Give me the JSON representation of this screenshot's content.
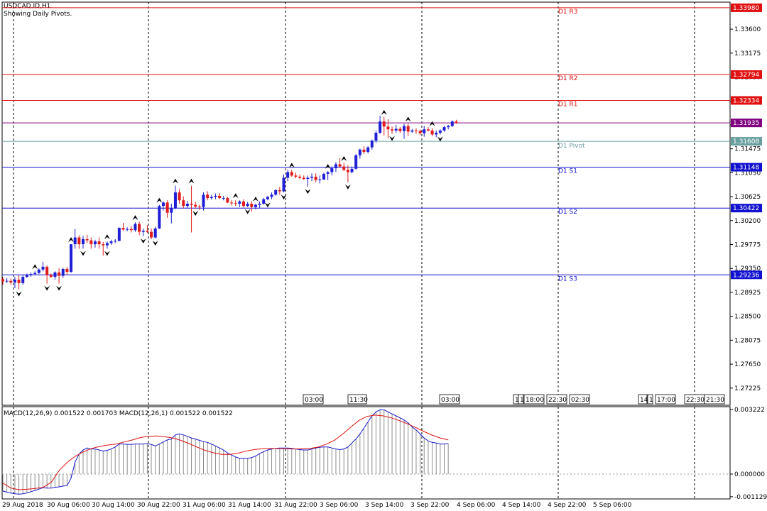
{
  "header": {
    "symbol": "USDCAD.ID,H1",
    "indicator_note": "Showing Daily Pivots."
  },
  "macd_header": "MACD(12,26,9) 0.001522 0.001703 MACD(12,26,1) 0.001522 0.001522",
  "colors": {
    "up_candle": "#1f1fd6",
    "down_candle": "#e01c1c",
    "macd_line": "#1a1acc",
    "signal_line": "#dd1111",
    "resistance": "#e01010",
    "support": "#1010d0",
    "pivot": "#6a9fa0",
    "grid_separator": "#000000",
    "current_price_bg": "#800080"
  },
  "chart_data": [
    {
      "type": "candlestick",
      "ylim": [
        1.2692,
        1.3408
      ],
      "y_ticks": [
        "1.33600",
        "1.33175",
        "1.32750",
        "1.32320",
        "1.31900",
        "1.31475",
        "1.31050",
        "1.30625",
        "1.30200",
        "1.29775",
        "1.29350",
        "1.28925",
        "1.28500",
        "1.28075",
        "1.27650",
        "1.27225"
      ],
      "x_labels": [
        "29 Aug 2018",
        "30 Aug 06:00",
        "30 Aug 14:00",
        "30 Aug 22:00",
        "31 Aug 06:00",
        "31 Aug 14:00",
        "31 Aug 22:00",
        "3 Sep 06:00",
        "3 Sep 14:00",
        "3 Sep 22:00",
        "4 Sep 06:00",
        "4 Sep 14:00",
        "4 Sep 22:00",
        "5 Sep 06:00"
      ],
      "day_separators_x_labels": [
        "29 Aug 2018",
        "30 Aug 22:00",
        "31 Aug 22:00",
        "3 Sep 22:00",
        "4 Sep 22:00"
      ],
      "pivot_levels": [
        {
          "name": "D1 R3",
          "value": 1.3398,
          "role": "resistance",
          "badge": "1.33980"
        },
        {
          "name": "D1 R2",
          "value": 1.32794,
          "role": "resistance",
          "badge": "1.32794"
        },
        {
          "name": "D1 R1",
          "value": 1.32334,
          "role": "resistance",
          "badge": "1.32334"
        },
        {
          "name": "D1 Pivot",
          "value": 1.31608,
          "role": "pivot",
          "badge": "1.31608"
        },
        {
          "name": "D1 S1",
          "value": 1.31148,
          "role": "support",
          "badge": "1.31148"
        },
        {
          "name": "D1 S2",
          "value": 1.30422,
          "role": "support",
          "badge": "1.30422"
        },
        {
          "name": "D1 S3",
          "value": 1.29236,
          "role": "support",
          "badge": "1.29236"
        }
      ],
      "current_price": {
        "value": 1.31935,
        "badge": "1.31935"
      },
      "time_markers": [
        "03:00",
        "11:30",
        "03:00",
        "1",
        "1",
        "18:00",
        "22:30",
        "02:30",
        "14",
        "1",
        "17:00",
        "22:30",
        "21:30"
      ],
      "candles_ohlc": [
        [
          1.2916,
          1.292,
          1.2906,
          1.2912
        ],
        [
          1.2912,
          1.2918,
          1.2909,
          1.2913
        ],
        [
          1.2913,
          1.2917,
          1.2906,
          1.291
        ],
        [
          1.291,
          1.292,
          1.29,
          1.2915
        ],
        [
          1.2915,
          1.2923,
          1.2898,
          1.2909
        ],
        [
          1.2909,
          1.2924,
          1.2906,
          1.292
        ],
        [
          1.292,
          1.2926,
          1.2918,
          1.2923
        ],
        [
          1.2923,
          1.2928,
          1.292,
          1.2925
        ],
        [
          1.2925,
          1.293,
          1.2923,
          1.2927
        ],
        [
          1.2927,
          1.2935,
          1.2925,
          1.2933
        ],
        [
          1.2933,
          1.2947,
          1.293,
          1.2938
        ],
        [
          1.2938,
          1.294,
          1.2908,
          1.2923
        ],
        [
          1.2923,
          1.2926,
          1.2918,
          1.292
        ],
        [
          1.292,
          1.293,
          1.2915,
          1.2928
        ],
        [
          1.2928,
          1.2935,
          1.2908,
          1.2922
        ],
        [
          1.2922,
          1.2936,
          1.2918,
          1.2934
        ],
        [
          1.2934,
          1.2938,
          1.2924,
          1.2929
        ],
        [
          1.2929,
          1.2978,
          1.2927,
          1.2978
        ],
        [
          1.2978,
          1.3005,
          1.297,
          1.299
        ],
        [
          1.299,
          1.2994,
          1.297,
          1.2978
        ],
        [
          1.2978,
          1.2993,
          1.297,
          1.2987
        ],
        [
          1.2987,
          1.2995,
          1.298,
          1.2985
        ],
        [
          1.2985,
          1.299,
          1.297,
          1.2978
        ],
        [
          1.2978,
          1.2986,
          1.2972,
          1.2983
        ],
        [
          1.2983,
          1.299,
          1.297,
          1.2978
        ],
        [
          1.2978,
          1.2982,
          1.2958,
          1.2976
        ],
        [
          1.2976,
          1.2983,
          1.297,
          1.298
        ],
        [
          1.298,
          1.2986,
          1.2977,
          1.2983
        ],
        [
          1.2983,
          1.2987,
          1.298,
          1.2984
        ],
        [
          1.2984,
          1.3008,
          1.2983,
          1.3007
        ],
        [
          1.3007,
          1.3016,
          1.3002,
          1.3004
        ],
        [
          1.3004,
          1.3008,
          1.3001,
          1.3005
        ],
        [
          1.3005,
          1.301,
          1.2999,
          1.3003
        ],
        [
          1.3003,
          1.3017,
          1.3,
          1.3014
        ],
        [
          1.3014,
          1.3018,
          1.2994,
          1.3
        ],
        [
          1.3,
          1.3006,
          1.2992,
          1.3002
        ],
        [
          1.3002,
          1.3012,
          1.2998,
          1.3
        ],
        [
          1.3,
          1.3006,
          1.2987,
          1.299
        ],
        [
          1.299,
          1.3009,
          1.2988,
          1.3006
        ],
        [
          1.3006,
          1.3048,
          1.3005,
          1.3046
        ],
        [
          1.3046,
          1.3054,
          1.3038,
          1.3052
        ],
        [
          1.3052,
          1.3056,
          1.3025,
          1.3034
        ],
        [
          1.3034,
          1.305,
          1.3015,
          1.3042
        ],
        [
          1.3042,
          1.3082,
          1.304,
          1.307
        ],
        [
          1.307,
          1.3076,
          1.305,
          1.3056
        ],
        [
          1.3056,
          1.3063,
          1.3042,
          1.3046
        ],
        [
          1.3046,
          1.3055,
          1.3042,
          1.305
        ],
        [
          1.305,
          1.3082,
          1.2999,
          1.3048
        ],
        [
          1.3048,
          1.3053,
          1.3041,
          1.3045
        ],
        [
          1.3045,
          1.3048,
          1.3039,
          1.3044
        ],
        [
          1.3044,
          1.307,
          1.3038,
          1.3066
        ],
        [
          1.3066,
          1.3072,
          1.3056,
          1.306
        ],
        [
          1.306,
          1.3066,
          1.3057,
          1.3062
        ],
        [
          1.3062,
          1.3068,
          1.3058,
          1.3064
        ],
        [
          1.3064,
          1.3069,
          1.3058,
          1.306
        ],
        [
          1.306,
          1.3064,
          1.3056,
          1.306
        ],
        [
          1.306,
          1.3062,
          1.3051,
          1.3052
        ],
        [
          1.3052,
          1.3056,
          1.3047,
          1.3051
        ],
        [
          1.3051,
          1.3056,
          1.3046,
          1.305
        ],
        [
          1.305,
          1.3056,
          1.3044,
          1.3054
        ],
        [
          1.3054,
          1.3058,
          1.3043,
          1.3046
        ],
        [
          1.3046,
          1.3053,
          1.3044,
          1.305
        ],
        [
          1.305,
          1.3054,
          1.3036,
          1.3044
        ],
        [
          1.3044,
          1.305,
          1.304,
          1.3048
        ],
        [
          1.3048,
          1.3054,
          1.3042,
          1.305
        ],
        [
          1.305,
          1.306,
          1.3048,
          1.3058
        ],
        [
          1.3058,
          1.3064,
          1.3056,
          1.3062
        ],
        [
          1.3062,
          1.307,
          1.3058,
          1.3066
        ],
        [
          1.3066,
          1.3076,
          1.3064,
          1.3074
        ],
        [
          1.3074,
          1.308,
          1.3066,
          1.3072
        ],
        [
          1.3072,
          1.3102,
          1.307,
          1.3096
        ],
        [
          1.3096,
          1.311,
          1.309,
          1.3106
        ],
        [
          1.3106,
          1.311,
          1.3098,
          1.31
        ],
        [
          1.31,
          1.3105,
          1.3095,
          1.3098
        ],
        [
          1.3098,
          1.3102,
          1.3094,
          1.3096
        ],
        [
          1.3096,
          1.31,
          1.3092,
          1.3094
        ],
        [
          1.3094,
          1.31,
          1.308,
          1.3096
        ],
        [
          1.3096,
          1.3104,
          1.309,
          1.3098
        ],
        [
          1.3098,
          1.3104,
          1.3088,
          1.3092
        ],
        [
          1.3092,
          1.31,
          1.3086,
          1.3093
        ],
        [
          1.3093,
          1.3105,
          1.3092,
          1.3103
        ],
        [
          1.3103,
          1.3108,
          1.3092,
          1.3106
        ],
        [
          1.3106,
          1.3116,
          1.31,
          1.3113
        ],
        [
          1.3113,
          1.3124,
          1.3106,
          1.312
        ],
        [
          1.312,
          1.3131,
          1.3114,
          1.3116
        ],
        [
          1.3116,
          1.3122,
          1.3108,
          1.311
        ],
        [
          1.311,
          1.3118,
          1.3088,
          1.3106
        ],
        [
          1.3106,
          1.3116,
          1.3104,
          1.3112
        ],
        [
          1.3112,
          1.3138,
          1.311,
          1.3136
        ],
        [
          1.3136,
          1.3148,
          1.313,
          1.3146
        ],
        [
          1.3146,
          1.3152,
          1.3138,
          1.3142
        ],
        [
          1.3142,
          1.3152,
          1.3139,
          1.315
        ],
        [
          1.315,
          1.3164,
          1.3146,
          1.3162
        ],
        [
          1.3162,
          1.318,
          1.3158,
          1.3176
        ],
        [
          1.3176,
          1.3206,
          1.3174,
          1.3196
        ],
        [
          1.3196,
          1.3204,
          1.3171,
          1.3187
        ],
        [
          1.3187,
          1.32,
          1.3166,
          1.3182
        ],
        [
          1.3182,
          1.3187,
          1.3174,
          1.318
        ],
        [
          1.318,
          1.319,
          1.3176,
          1.3183
        ],
        [
          1.3183,
          1.3186,
          1.3176,
          1.3179
        ],
        [
          1.3179,
          1.3192,
          1.3165,
          1.3188
        ],
        [
          1.3188,
          1.3192,
          1.317,
          1.3178
        ],
        [
          1.3178,
          1.3183,
          1.3176,
          1.318
        ],
        [
          1.318,
          1.3184,
          1.3174,
          1.3179
        ],
        [
          1.3179,
          1.3182,
          1.3172,
          1.3175
        ],
        [
          1.3175,
          1.3188,
          1.3169,
          1.3182
        ],
        [
          1.3182,
          1.3186,
          1.3178,
          1.318
        ],
        [
          1.318,
          1.3184,
          1.317,
          1.3173
        ],
        [
          1.3173,
          1.318,
          1.3168,
          1.3176
        ],
        [
          1.3176,
          1.3182,
          1.3173,
          1.318
        ],
        [
          1.318,
          1.3188,
          1.3178,
          1.3186
        ],
        [
          1.3186,
          1.319,
          1.3182,
          1.3188
        ],
        [
          1.3188,
          1.3198,
          1.3186,
          1.3196
        ],
        [
          1.3196,
          1.3199,
          1.3192,
          1.31935
        ]
      ],
      "fractals_up": [
        8,
        17,
        26,
        33,
        39,
        43,
        47,
        58,
        63,
        72,
        81,
        85,
        95,
        101,
        107
      ],
      "fractals_down": [
        4,
        11,
        14,
        20,
        26,
        35,
        38,
        48,
        61,
        66,
        70,
        76,
        86,
        97,
        109
      ]
    },
    {
      "type": "macd_histogram_line",
      "title": "MACD(12,26,9) 0.001522 0.001703 MACD(12,26,1) 0.001522 0.001522",
      "ylim": [
        -0.00124,
        0.00336
      ],
      "y_ticks": [
        "0.003222",
        "0.000000",
        "-0.001129"
      ],
      "histogram": [
        -0.00085,
        -0.0009,
        -0.00095,
        -0.00098,
        -0.001,
        -0.00098,
        -0.00094,
        -0.00088,
        -0.00082,
        -0.00075,
        -0.00068,
        -0.0007,
        -0.0007,
        -0.00066,
        -0.00064,
        -0.0006,
        -0.00058,
        -0.0002,
        0.0006,
        0.001,
        0.0012,
        0.0013,
        0.00125,
        0.00125,
        0.0012,
        0.00115,
        0.00118,
        0.00125,
        0.00135,
        0.0015,
        0.0015,
        0.00148,
        0.00148,
        0.0015,
        0.0015,
        0.0015,
        0.00152,
        0.00148,
        0.0014,
        0.0015,
        0.0016,
        0.0017,
        0.00175,
        0.00195,
        0.002,
        0.00195,
        0.00188,
        0.0018,
        0.00175,
        0.00168,
        0.00162,
        0.00158,
        0.0015,
        0.0014,
        0.0013,
        0.0012,
        0.00105,
        0.00095,
        0.00085,
        0.00078,
        0.00078,
        0.00078,
        0.00082,
        0.0009,
        0.00102,
        0.00112,
        0.0012,
        0.00125,
        0.00128,
        0.0013,
        0.0013,
        0.0013,
        0.00128,
        0.00125,
        0.00122,
        0.0012,
        0.0012,
        0.00125,
        0.0013,
        0.00134,
        0.00135,
        0.00135,
        0.0013,
        0.00125,
        0.00122,
        0.00125,
        0.00135,
        0.00155,
        0.00175,
        0.002,
        0.0023,
        0.0026,
        0.0029,
        0.0031,
        0.0032,
        0.0032,
        0.0031,
        0.003,
        0.0029,
        0.0028,
        0.0027,
        0.00255,
        0.00235,
        0.0022,
        0.002,
        0.0018,
        0.00165,
        0.00158,
        0.00155,
        0.0015,
        0.0015,
        0.00152
      ],
      "signal_sampled": [
        -0.00045,
        -0.0007,
        -0.00078,
        -0.00076,
        -0.00072,
        -0.00066,
        -0.0004,
        0.0002,
        0.0006,
        0.0009,
        0.00112,
        0.00128,
        0.00138,
        0.00145,
        0.0015,
        0.0016,
        0.0017,
        0.00182,
        0.00188,
        0.0019,
        0.00186,
        0.0018,
        0.00168,
        0.00152,
        0.00134,
        0.00118,
        0.00106,
        0.00098,
        0.00098,
        0.00104,
        0.00114,
        0.00122,
        0.00126,
        0.00128,
        0.00127,
        0.00126,
        0.00125,
        0.00126,
        0.00128,
        0.00135,
        0.0015,
        0.0017,
        0.002,
        0.00235,
        0.00268,
        0.00288,
        0.00294,
        0.0029,
        0.0028,
        0.00266,
        0.0025,
        0.00232,
        0.00212,
        0.00194,
        0.0018,
        0.0017
      ]
    }
  ]
}
